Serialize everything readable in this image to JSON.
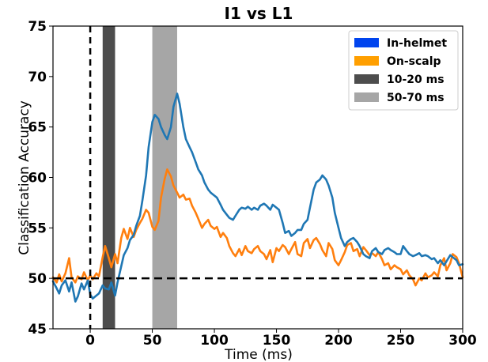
{
  "chart_data": {
    "type": "line",
    "title": "I1 vs L1",
    "xlabel": "Time (ms)",
    "ylabel": "Classification Accuracy",
    "xlim": [
      -30,
      300
    ],
    "ylim": [
      45,
      75
    ],
    "xticks": [
      0,
      50,
      100,
      150,
      200,
      250,
      300
    ],
    "yticks": [
      45,
      50,
      55,
      60,
      65,
      70,
      75
    ],
    "grid": false,
    "legend_position": "top-right",
    "chance_level": 50,
    "stimulus_onset": 0,
    "shaded_windows": [
      {
        "name": "10-20 ms",
        "start": 10,
        "end": 20,
        "color": "#4d4d4d"
      },
      {
        "name": "50-70 ms",
        "start": 50,
        "end": 70,
        "color": "#a6a6a6"
      }
    ],
    "series": [
      {
        "name": "In-helmet",
        "color": "#1f77b4",
        "legend_color": "#0044ee",
        "x": [
          -30,
          -27,
          -25,
          -23,
          -20,
          -17,
          -15,
          -12,
          -10,
          -7,
          -5,
          -2,
          0,
          2,
          5,
          7,
          10,
          12,
          15,
          17,
          20,
          22,
          25,
          27,
          30,
          32,
          35,
          37,
          40,
          42,
          45,
          47,
          50,
          52,
          55,
          57,
          60,
          62,
          65,
          67,
          70,
          72,
          75,
          77,
          80,
          82,
          85,
          87,
          90,
          92,
          95,
          97,
          100,
          102,
          105,
          107,
          110,
          112,
          115,
          117,
          120,
          122,
          125,
          127,
          130,
          132,
          135,
          137,
          140,
          142,
          145,
          147,
          150,
          152,
          155,
          157,
          160,
          162,
          165,
          167,
          170,
          172,
          175,
          177,
          180,
          182,
          185,
          187,
          190,
          192,
          195,
          197,
          200,
          202,
          205,
          207,
          210,
          212,
          215,
          217,
          220,
          222,
          225,
          227,
          230,
          232,
          235,
          237,
          240,
          242,
          245,
          247,
          250,
          252,
          255,
          257,
          260,
          262,
          265,
          267,
          270,
          272,
          275,
          277,
          280,
          282,
          285,
          287,
          290,
          292,
          295,
          297,
          300
        ],
        "values": [
          49.7,
          49,
          48.5,
          49.3,
          49.8,
          48.7,
          49.6,
          47.7,
          48.2,
          49.5,
          48.9,
          49.8,
          48.4,
          48,
          48.3,
          48.5,
          49.3,
          49,
          48.9,
          49.6,
          48.3,
          49.6,
          51.2,
          52.3,
          53,
          53.8,
          54.3,
          55.2,
          56.2,
          57.7,
          60.2,
          63,
          65.5,
          66.2,
          65.8,
          65,
          64.2,
          63.8,
          65,
          67,
          68.3,
          67.3,
          65,
          63.8,
          63,
          62.5,
          61.5,
          60.8,
          60.2,
          59.5,
          58.8,
          58.5,
          58.2,
          58,
          57.3,
          56.8,
          56.3,
          56,
          55.8,
          56.2,
          56.8,
          57,
          56.9,
          57.1,
          56.8,
          57,
          56.8,
          57.2,
          57.4,
          57.2,
          56.8,
          57.3,
          57,
          56.8,
          55.5,
          54.5,
          54.7,
          54.2,
          54.5,
          54.8,
          54.8,
          55.4,
          55.8,
          57,
          58.8,
          59.5,
          59.8,
          60.2,
          59.8,
          59.2,
          58,
          56.5,
          55,
          54,
          53.2,
          53.6,
          53.9,
          54,
          53.6,
          53.2,
          52.4,
          52.2,
          52,
          52.7,
          53,
          52.6,
          52.4,
          52.8,
          53,
          52.8,
          52.6,
          52.4,
          52.4,
          53.2,
          52.7,
          52.4,
          52.2,
          52.3,
          52.5,
          52.2,
          52.3,
          52.2,
          51.9,
          52,
          51.5,
          51.8,
          51.3,
          51.7,
          52.3,
          52.1,
          51.8,
          51.3,
          51.4
        ]
      },
      {
        "name": "On-scalp",
        "color": "#ff7f0e",
        "legend_color": "#ff9f00",
        "x": [
          -30,
          -27,
          -25,
          -23,
          -20,
          -17,
          -15,
          -12,
          -10,
          -7,
          -5,
          -2,
          0,
          2,
          5,
          7,
          10,
          12,
          15,
          17,
          20,
          22,
          25,
          27,
          30,
          32,
          35,
          37,
          40,
          42,
          45,
          47,
          50,
          52,
          55,
          57,
          60,
          62,
          65,
          67,
          70,
          72,
          75,
          77,
          80,
          82,
          85,
          87,
          90,
          92,
          95,
          97,
          100,
          102,
          105,
          107,
          110,
          112,
          115,
          117,
          120,
          122,
          125,
          127,
          130,
          132,
          135,
          137,
          140,
          142,
          145,
          147,
          150,
          152,
          155,
          157,
          160,
          162,
          165,
          167,
          170,
          172,
          175,
          177,
          180,
          182,
          185,
          187,
          190,
          192,
          195,
          197,
          200,
          202,
          205,
          207,
          210,
          212,
          215,
          217,
          220,
          222,
          225,
          227,
          230,
          232,
          235,
          237,
          240,
          242,
          245,
          247,
          250,
          252,
          255,
          257,
          260,
          262,
          265,
          267,
          270,
          272,
          275,
          277,
          280,
          282,
          285,
          287,
          290,
          292,
          295,
          297,
          300
        ],
        "values": [
          50.1,
          49.6,
          50.4,
          49.7,
          50.5,
          52,
          50.1,
          49.6,
          50.2,
          49.9,
          50.6,
          49.8,
          50.3,
          49.9,
          50.5,
          50.2,
          52.1,
          53.2,
          52,
          51.1,
          52.4,
          51.5,
          54,
          54.9,
          53.9,
          55,
          54.1,
          54.8,
          55.5,
          55.9,
          56.8,
          56.5,
          55.1,
          54.8,
          55.7,
          58,
          59.9,
          60.8,
          60.1,
          59.2,
          58.5,
          58,
          58.3,
          57.8,
          57.9,
          57.2,
          56.5,
          55.9,
          55,
          55.4,
          55.8,
          55.2,
          54.9,
          55.1,
          54.1,
          54.5,
          54,
          53.2,
          52.5,
          52.2,
          52.9,
          52.3,
          53.2,
          52.7,
          52.5,
          52.9,
          53.2,
          52.7,
          52.4,
          51.9,
          52.8,
          51.6,
          53,
          52.7,
          53.3,
          53.1,
          52.4,
          52.9,
          53.6,
          52.4,
          52.2,
          53.5,
          53.9,
          53,
          53.8,
          54,
          53.4,
          52.8,
          52.2,
          53.5,
          52.9,
          51.8,
          51.3,
          51.8,
          52.6,
          53.3,
          53.5,
          52.7,
          52.9,
          52.2,
          53.1,
          52.8,
          52.3,
          52.5,
          52.2,
          52.6,
          51.9,
          51.3,
          51.5,
          50.9,
          51.3,
          51.1,
          50.9,
          50.4,
          50.8,
          50.3,
          49.9,
          49.3,
          50,
          49.8,
          50.5,
          50.1,
          50.3,
          50.6,
          50.2,
          51.3,
          52,
          50.8,
          51.5,
          52.4,
          52.1,
          51.5,
          50.1
        ]
      }
    ]
  }
}
